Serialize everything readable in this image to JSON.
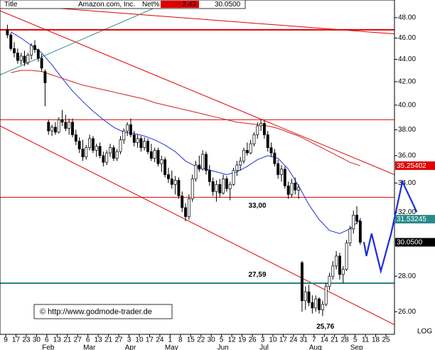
{
  "title_bar": {
    "label": "Title",
    "name": "Amazon.com, Inc.",
    "net_label": "Net%",
    "net": 2.43,
    "last": {
      "value": 30.05,
      "label": "30.0500"
    }
  },
  "chart_data": {
    "type": "candlestick",
    "log_scale": true,
    "up_color": "#ffffff",
    "down_color": "#000000",
    "ylim": [
      24.8,
      49.8
    ],
    "yticks": [
      {
        "value": 26,
        "label": "26.00"
      },
      {
        "value": 28,
        "label": "28.00"
      },
      {
        "value": 32,
        "label": "32.00"
      },
      {
        "value": 34,
        "label": "34.00"
      },
      {
        "value": 36,
        "label": "36.00"
      },
      {
        "value": 38,
        "label": "38.00"
      },
      {
        "value": 40,
        "label": "40.00"
      },
      {
        "value": 42,
        "label": "42.00"
      },
      {
        "value": 44,
        "label": "44.00"
      },
      {
        "value": 46,
        "label": "46.00"
      },
      {
        "value": 48,
        "label": "48.00"
      }
    ],
    "weeks": [
      {
        "day": "9"
      },
      {
        "day": "17"
      },
      {
        "day": "23"
      },
      {
        "day": "30"
      },
      {
        "day": "6",
        "month": "Feb"
      },
      {
        "day": "13"
      },
      {
        "day": "21"
      },
      {
        "day": "27"
      },
      {
        "day": "6",
        "month": "Mar"
      },
      {
        "day": "13"
      },
      {
        "day": "21"
      },
      {
        "day": "27"
      },
      {
        "day": "3",
        "month": "Apr"
      },
      {
        "day": "10"
      },
      {
        "day": "17"
      },
      {
        "day": "24"
      },
      {
        "day": "1",
        "month": "May"
      },
      {
        "day": "8"
      },
      {
        "day": "15"
      },
      {
        "day": "22"
      },
      {
        "day": "30"
      },
      {
        "day": "5",
        "month": "Jun"
      },
      {
        "day": "12"
      },
      {
        "day": "19"
      },
      {
        "day": "26"
      },
      {
        "day": "3",
        "month": "Jul"
      },
      {
        "day": "10"
      },
      {
        "day": "17"
      },
      {
        "day": "24"
      },
      {
        "day": "31"
      },
      {
        "day": "7",
        "month": "Aug"
      },
      {
        "day": "14"
      },
      {
        "day": "21"
      },
      {
        "day": "28"
      },
      {
        "day": "5",
        "month": "Sep"
      },
      {
        "day": "11"
      },
      {
        "day": "18"
      },
      {
        "day": "25"
      }
    ],
    "candles": [
      [
        [
          46.8,
          47.3,
          46.0,
          46.3
        ],
        [
          46.3,
          46.5,
          44.8,
          45.0
        ],
        [
          45.0,
          45.6,
          44.2,
          44.6
        ]
      ],
      [
        [
          44.6,
          45.0,
          43.6,
          43.9
        ],
        [
          43.9,
          44.6,
          43.5,
          44.3
        ],
        [
          44.3,
          44.8,
          43.4,
          43.7
        ]
      ],
      [
        [
          43.7,
          44.6,
          43.5,
          44.4
        ],
        [
          44.4,
          45.5,
          44.0,
          45.3
        ],
        [
          45.3,
          45.8,
          44.6,
          44.9
        ]
      ],
      [
        [
          44.9,
          45.0,
          43.8,
          44.1
        ],
        [
          44.1,
          44.5,
          42.9,
          43.2
        ],
        [
          42.9,
          43.1,
          39.9,
          41.9
        ]
      ],
      [
        [
          38.6,
          38.8,
          37.6,
          37.9
        ],
        [
          37.9,
          38.4,
          37.5,
          38.2
        ],
        [
          38.2,
          38.6,
          37.6,
          37.8
        ]
      ],
      [
        [
          37.8,
          39.0,
          37.7,
          38.8
        ],
        [
          38.8,
          39.6,
          38.3,
          38.6
        ],
        [
          38.6,
          39.2,
          37.9,
          38.1
        ]
      ],
      [
        [
          38.1,
          38.9,
          37.6,
          38.6
        ],
        [
          38.6,
          38.9,
          37.4,
          37.6
        ],
        [
          37.6,
          38.0,
          36.8,
          37.1
        ]
      ],
      [
        [
          37.1,
          37.4,
          36.2,
          36.5
        ],
        [
          36.5,
          37.2,
          35.6,
          35.9
        ],
        [
          35.9,
          36.8,
          35.7,
          36.6
        ]
      ],
      [
        [
          36.6,
          37.6,
          36.4,
          37.3
        ],
        [
          37.3,
          37.5,
          36.2,
          36.4
        ],
        [
          36.4,
          36.9,
          35.9,
          36.7
        ]
      ],
      [
        [
          36.7,
          37.0,
          35.8,
          36.0
        ],
        [
          36.0,
          36.3,
          35.2,
          35.5
        ],
        [
          35.5,
          36.4,
          35.3,
          36.2
        ]
      ],
      [
        [
          36.2,
          36.9,
          35.9,
          36.6
        ],
        [
          36.6,
          36.8,
          35.6,
          35.8
        ],
        [
          35.8,
          36.5,
          35.6,
          36.3
        ]
      ],
      [
        [
          36.3,
          37.5,
          36.1,
          37.2
        ],
        [
          37.2,
          38.1,
          36.9,
          37.9
        ],
        [
          37.9,
          38.6,
          37.5,
          38.4
        ]
      ],
      [
        [
          38.4,
          38.9,
          37.4,
          37.6
        ],
        [
          37.6,
          37.9,
          36.7,
          37.0
        ],
        [
          37.0,
          37.6,
          36.6,
          37.3
        ]
      ],
      [
        [
          37.3,
          37.5,
          36.3,
          36.6
        ],
        [
          36.6,
          37.4,
          36.4,
          37.1
        ],
        [
          37.1,
          37.3,
          36.1,
          36.3
        ]
      ],
      [
        [
          36.3,
          36.9,
          35.6,
          35.8
        ],
        [
          35.8,
          36.6,
          35.5,
          36.4
        ],
        [
          36.4,
          36.6,
          35.2,
          35.4
        ]
      ],
      [
        [
          35.4,
          36.0,
          34.8,
          35.7
        ],
        [
          35.7,
          35.9,
          34.4,
          34.6
        ],
        [
          34.6,
          35.1,
          34.0,
          34.3
        ]
      ],
      [
        [
          34.3,
          34.9,
          33.6,
          33.9
        ],
        [
          33.9,
          34.5,
          33.2,
          34.2
        ],
        [
          34.2,
          34.4,
          32.9,
          33.1
        ]
      ],
      [
        [
          33.1,
          33.4,
          32.0,
          32.3
        ],
        [
          32.3,
          32.6,
          31.4,
          31.7
        ],
        [
          31.7,
          33.2,
          31.5,
          32.9
        ]
      ],
      [
        [
          32.9,
          34.6,
          32.7,
          34.3
        ],
        [
          34.3,
          35.6,
          34.1,
          35.3
        ],
        [
          35.3,
          36.0,
          34.8,
          35.0
        ]
      ],
      [
        [
          35.0,
          36.4,
          34.9,
          36.1
        ],
        [
          36.1,
          36.3,
          34.6,
          34.9
        ],
        [
          34.9,
          35.3,
          33.8,
          34.1
        ]
      ],
      [
        [
          34.1,
          34.4,
          33.1,
          33.4
        ],
        [
          33.4,
          34.2,
          32.7,
          33.9
        ],
        [
          33.9,
          34.3,
          33.0,
          33.3
        ]
      ],
      [
        [
          33.3,
          34.6,
          33.2,
          34.3
        ],
        [
          34.3,
          34.5,
          33.4,
          33.6
        ],
        [
          33.6,
          34.1,
          32.8,
          33.9
        ]
      ],
      [
        [
          33.9,
          35.1,
          33.8,
          34.9
        ],
        [
          34.9,
          35.6,
          34.5,
          35.3
        ],
        [
          35.3,
          35.9,
          34.9,
          35.6
        ]
      ],
      [
        [
          35.6,
          36.6,
          35.4,
          36.4
        ],
        [
          36.4,
          37.0,
          36.0,
          36.2
        ],
        [
          36.2,
          37.2,
          36.1,
          36.9
        ]
      ],
      [
        [
          36.9,
          37.8,
          36.7,
          37.6
        ],
        [
          37.6,
          38.6,
          37.3,
          38.3
        ],
        [
          38.3,
          38.8,
          37.9,
          38.5
        ]
      ],
      [
        [
          38.5,
          38.7,
          37.3,
          37.6
        ],
        [
          37.6,
          37.9,
          36.3,
          36.6
        ],
        [
          36.6,
          37.0,
          35.9,
          36.2
        ]
      ],
      [
        [
          36.2,
          36.5,
          35.2,
          35.4
        ],
        [
          35.4,
          35.7,
          34.3,
          34.6
        ],
        [
          34.6,
          35.3,
          34.1,
          35.0
        ]
      ],
      [
        [
          35.0,
          35.2,
          33.6,
          33.8
        ],
        [
          33.8,
          34.1,
          32.9,
          33.2
        ],
        [
          33.2,
          34.3,
          33.0,
          34.0
        ]
      ],
      [
        [
          34.0,
          34.4,
          33.2,
          33.5
        ],
        [
          33.5,
          33.9,
          32.9,
          33.7
        ],
        [
          28.8,
          28.9,
          26.0,
          26.6
        ]
      ],
      [
        [
          26.6,
          27.4,
          26.1,
          27.1
        ],
        [
          27.1,
          27.5,
          26.3,
          26.5
        ],
        [
          26.5,
          26.9,
          25.9,
          26.2
        ]
      ],
      [
        [
          26.2,
          26.9,
          26.0,
          26.7
        ],
        [
          26.7,
          26.8,
          25.9,
          26.1
        ],
        [
          26.1,
          26.6,
          25.76,
          26.4
        ]
      ],
      [
        [
          26.4,
          27.6,
          26.3,
          27.4
        ],
        [
          27.4,
          28.2,
          27.2,
          28.0
        ],
        [
          28.0,
          28.9,
          27.8,
          28.6
        ]
      ],
      [
        [
          28.6,
          29.5,
          28.4,
          29.2
        ],
        [
          29.2,
          29.4,
          27.8,
          28.1
        ],
        [
          28.1,
          28.6,
          27.6,
          28.4
        ]
      ],
      [
        [
          28.4,
          30.2,
          28.3,
          30.0
        ],
        [
          30.0,
          31.1,
          29.8,
          30.9
        ],
        [
          30.9,
          32.1,
          30.6,
          31.8
        ]
      ],
      [
        [
          31.8,
          32.4,
          31.2,
          31.4
        ],
        [
          31.4,
          31.6,
          29.9,
          30.05
        ]
      ]
    ],
    "series": [
      {
        "color": "#2233cc",
        "values": [
          46.6,
          46.0,
          45.3,
          44.6,
          43.5,
          42.3,
          41.2,
          40.3,
          39.5,
          38.8,
          38.2,
          37.8,
          37.7,
          37.5,
          37.2,
          36.8,
          36.3,
          35.6,
          35.2,
          35.0,
          34.8,
          34.6,
          34.8,
          35.2,
          35.7,
          36.0,
          35.8,
          35.0,
          33.8,
          32.5,
          31.5,
          30.8,
          30.6,
          30.9,
          31.5
        ]
      },
      {
        "color": "#cc2222",
        "values": [
          42.8,
          43.0,
          43.0,
          42.9,
          42.6,
          42.3,
          42.0,
          41.7,
          41.5,
          41.3,
          41.1,
          40.9,
          40.7,
          40.5,
          40.2,
          40.0,
          39.8,
          39.6,
          39.4,
          39.2,
          39.0,
          38.8,
          38.6,
          38.5,
          38.4,
          38.3,
          38.1,
          37.8,
          37.5,
          37.1,
          36.7,
          36.3,
          35.9,
          35.5,
          35.25
        ]
      }
    ],
    "hlines": [
      {
        "value": 46.8,
        "color": "#e00000",
        "thick": true
      },
      {
        "value": 38.8,
        "color": "#e00000"
      },
      {
        "value": 33,
        "color": "#e00000",
        "label": "33,00"
      },
      {
        "value": 27.59,
        "color": "#1f7f7f",
        "thick": true,
        "label": "27,59"
      }
    ],
    "trendlines": [
      {
        "color": "#e00000",
        "points": [
          [
            -0.55,
            48.7
          ],
          [
            37.83,
            34.6
          ]
        ]
      },
      {
        "color": "#e00000",
        "points": [
          [
            -0.55,
            38.3
          ],
          [
            37.83,
            25.3
          ]
        ]
      },
      {
        "color": "#e00000",
        "points": [
          [
            -0.55,
            49.4
          ],
          [
            37.83,
            46.4
          ]
        ]
      },
      {
        "color": "#2e8b8b",
        "points": [
          [
            -0.55,
            42.6
          ],
          [
            14.3,
            48.9
          ]
        ]
      }
    ],
    "projection": {
      "color": "#1a2fd6",
      "points": [
        [
          34.85,
          30.07
        ],
        [
          35.1,
          29.2
        ],
        [
          35.6,
          30.6
        ],
        [
          36.5,
          28.3
        ],
        [
          37.5,
          30.6
        ],
        [
          38.6,
          34.1
        ],
        [
          40.0,
          32.0
        ]
      ]
    },
    "low_label": {
      "value": 25.76,
      "label": "25,76"
    },
    "price_tags": [
      {
        "value": 35.25402,
        "label": "35.25402",
        "color": "#e00000"
      },
      {
        "value": 31.53245,
        "label": "31.53245",
        "color": "#2a8a8a"
      },
      {
        "value": 30.05,
        "label": "30.0500",
        "color": "#000000"
      }
    ],
    "copyright": "© http://www.godmode-trader.de",
    "scale_label": "LOG"
  }
}
